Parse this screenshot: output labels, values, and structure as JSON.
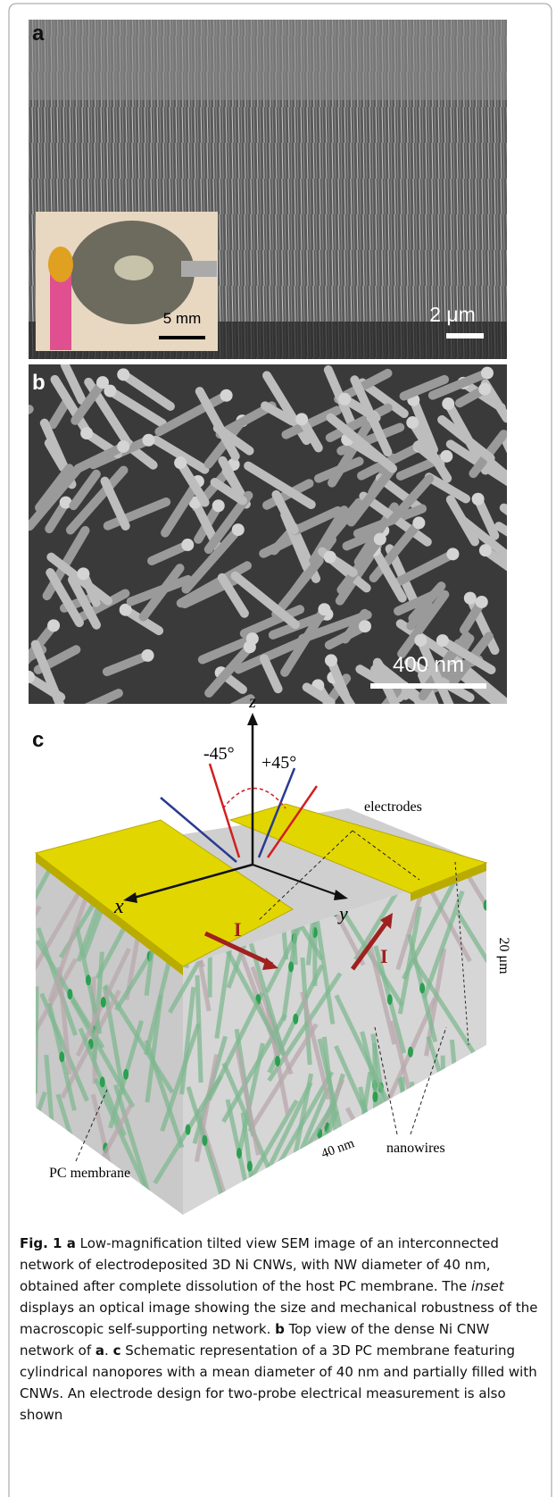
{
  "panel_a": {
    "label": "a",
    "scale_bar": "2 μm",
    "inset_scale_bar": "5 mm"
  },
  "panel_b": {
    "label": "b",
    "scale_bar": "400 nm"
  },
  "panel_c": {
    "label": "c",
    "axes": {
      "z": "z",
      "x": "x",
      "y": "y"
    },
    "angles": [
      "-45°",
      "+45°"
    ],
    "electrodes": "electrodes",
    "currents": [
      "I",
      "I"
    ],
    "thickness": "20 μm",
    "diameter": "40 nm",
    "nanowires": "nanowires",
    "membrane": "PC membrane"
  },
  "caption": {
    "runs": [
      {
        "text": "Fig. 1 a",
        "style": "bold"
      },
      {
        "text": " Low-magnification tilted view SEM image of an interconnected network of electrodeposited 3D Ni CNWs, with NW diameter of 40 nm, obtained after complete dissolution of the host PC membrane. The ",
        "style": "normal"
      },
      {
        "text": "inset",
        "style": "italic"
      },
      {
        "text": " displays an optical image showing the size and mechanical robustness of the macroscopic self-supporting network. ",
        "style": "normal"
      },
      {
        "text": "b",
        "style": "bold"
      },
      {
        "text": " Top view of the dense Ni CNW network of ",
        "style": "normal"
      },
      {
        "text": "a",
        "style": "bold"
      },
      {
        "text": ". ",
        "style": "normal"
      },
      {
        "text": "c",
        "style": "bold"
      },
      {
        "text": " Schematic representation of a 3D PC membrane featuring cylindrical nanopores with a mean diameter of 40 nm and partially filled with CNWs. An electrode design for two-probe electrical measurement is also shown",
        "style": "normal"
      }
    ]
  }
}
